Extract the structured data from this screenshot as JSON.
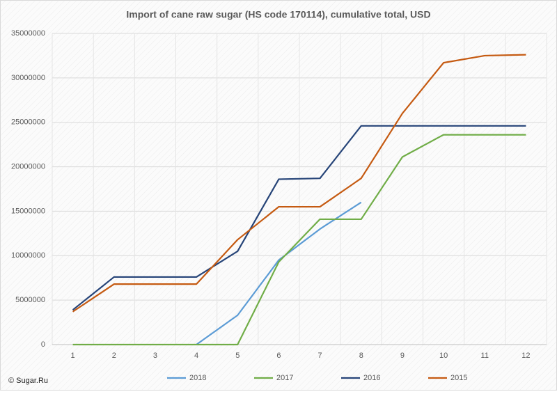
{
  "chart_data": {
    "type": "line",
    "title": "Import of cane raw sugar (HS code 170114), cumulative total, USD",
    "footer": "© Sugar.Ru",
    "categories": [
      "1",
      "2",
      "3",
      "4",
      "5",
      "6",
      "7",
      "8",
      "9",
      "10",
      "11",
      "12"
    ],
    "ylim": [
      0,
      35000000
    ],
    "yticks": [
      0,
      5000000,
      10000000,
      15000000,
      20000000,
      25000000,
      30000000,
      35000000
    ],
    "grid": true,
    "legend": "bottom",
    "series": [
      {
        "name": "2018",
        "color": "#5b9bd5",
        "values": [
          null,
          null,
          null,
          0,
          3300000,
          9500000,
          13000000,
          16000000,
          null,
          null,
          null,
          null
        ]
      },
      {
        "name": "2017",
        "color": "#70ad47",
        "values": [
          0,
          0,
          0,
          0,
          0,
          9300000,
          14100000,
          14100000,
          21100000,
          23600000,
          23600000,
          23600000
        ]
      },
      {
        "name": "2016",
        "color": "#264478",
        "values": [
          3900000,
          7600000,
          7600000,
          7600000,
          10500000,
          18600000,
          18700000,
          24600000,
          24600000,
          24600000,
          24600000,
          24600000
        ]
      },
      {
        "name": "2015",
        "color": "#c55a11",
        "values": [
          3700000,
          6800000,
          6800000,
          6800000,
          11800000,
          15500000,
          15500000,
          18700000,
          26000000,
          31700000,
          32500000,
          32600000
        ]
      }
    ]
  }
}
